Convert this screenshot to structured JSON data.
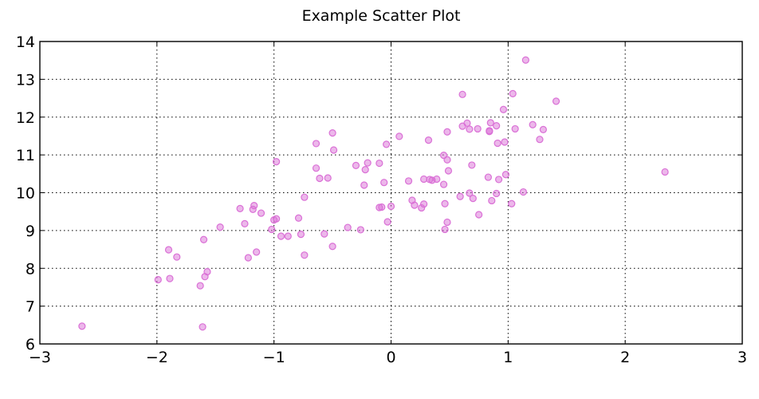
{
  "chart_data": {
    "type": "scatter",
    "title": "Example Scatter Plot",
    "xlabel": "",
    "ylabel": "",
    "xlim": [
      -3,
      3
    ],
    "ylim": [
      6,
      14
    ],
    "xticks": [
      -3,
      -2,
      -1,
      0,
      1,
      2,
      3
    ],
    "yticks": [
      6,
      7,
      8,
      9,
      10,
      11,
      12,
      13,
      14
    ],
    "xtick_labels": [
      "−3",
      "−2",
      "−1",
      "0",
      "1",
      "2",
      "3"
    ],
    "ytick_labels": [
      "6",
      "7",
      "8",
      "9",
      "10",
      "11",
      "12",
      "13",
      "14"
    ],
    "grid": true,
    "color": "#da70d6",
    "points": [
      {
        "x": -2.64,
        "y": 6.47
      },
      {
        "x": -1.99,
        "y": 7.7
      },
      {
        "x": -1.89,
        "y": 7.73
      },
      {
        "x": -1.9,
        "y": 8.49
      },
      {
        "x": -1.83,
        "y": 8.3
      },
      {
        "x": -1.63,
        "y": 7.54
      },
      {
        "x": -1.61,
        "y": 6.45
      },
      {
        "x": -1.59,
        "y": 7.78
      },
      {
        "x": -1.57,
        "y": 7.91
      },
      {
        "x": -1.6,
        "y": 8.76
      },
      {
        "x": -1.46,
        "y": 9.09
      },
      {
        "x": -1.29,
        "y": 9.58
      },
      {
        "x": -1.25,
        "y": 9.18
      },
      {
        "x": -1.22,
        "y": 8.28
      },
      {
        "x": -1.18,
        "y": 9.56
      },
      {
        "x": -1.17,
        "y": 9.66
      },
      {
        "x": -1.15,
        "y": 8.43
      },
      {
        "x": -1.11,
        "y": 9.46
      },
      {
        "x": -1.02,
        "y": 9.03
      },
      {
        "x": -1.0,
        "y": 9.28
      },
      {
        "x": -0.98,
        "y": 9.31
      },
      {
        "x": -0.98,
        "y": 10.82
      },
      {
        "x": -0.94,
        "y": 8.85
      },
      {
        "x": -0.88,
        "y": 8.85
      },
      {
        "x": -0.79,
        "y": 9.33
      },
      {
        "x": -0.77,
        "y": 8.9
      },
      {
        "x": -0.74,
        "y": 8.35
      },
      {
        "x": -0.74,
        "y": 9.88
      },
      {
        "x": -0.64,
        "y": 11.3
      },
      {
        "x": -0.64,
        "y": 10.65
      },
      {
        "x": -0.61,
        "y": 10.38
      },
      {
        "x": -0.57,
        "y": 8.91
      },
      {
        "x": -0.54,
        "y": 10.39
      },
      {
        "x": -0.5,
        "y": 11.58
      },
      {
        "x": -0.49,
        "y": 11.13
      },
      {
        "x": -0.5,
        "y": 8.58
      },
      {
        "x": -0.37,
        "y": 9.08
      },
      {
        "x": -0.3,
        "y": 10.72
      },
      {
        "x": -0.26,
        "y": 9.02
      },
      {
        "x": -0.23,
        "y": 10.2
      },
      {
        "x": -0.22,
        "y": 10.61
      },
      {
        "x": -0.2,
        "y": 10.79
      },
      {
        "x": -0.1,
        "y": 10.78
      },
      {
        "x": -0.1,
        "y": 9.61
      },
      {
        "x": -0.08,
        "y": 9.62
      },
      {
        "x": -0.06,
        "y": 10.27
      },
      {
        "x": -0.04,
        "y": 11.28
      },
      {
        "x": -0.03,
        "y": 9.23
      },
      {
        "x": 0.0,
        "y": 9.64
      },
      {
        "x": 0.07,
        "y": 11.49
      },
      {
        "x": 0.15,
        "y": 10.31
      },
      {
        "x": 0.18,
        "y": 9.8
      },
      {
        "x": 0.2,
        "y": 9.67
      },
      {
        "x": 0.26,
        "y": 9.6
      },
      {
        "x": 0.28,
        "y": 9.7
      },
      {
        "x": 0.28,
        "y": 10.36
      },
      {
        "x": 0.32,
        "y": 11.39
      },
      {
        "x": 0.33,
        "y": 10.35
      },
      {
        "x": 0.35,
        "y": 10.33
      },
      {
        "x": 0.39,
        "y": 10.36
      },
      {
        "x": 0.45,
        "y": 10.99
      },
      {
        "x": 0.45,
        "y": 10.22
      },
      {
        "x": 0.46,
        "y": 9.71
      },
      {
        "x": 0.46,
        "y": 9.03
      },
      {
        "x": 0.48,
        "y": 10.87
      },
      {
        "x": 0.48,
        "y": 11.61
      },
      {
        "x": 0.48,
        "y": 9.22
      },
      {
        "x": 0.49,
        "y": 10.58
      },
      {
        "x": 0.59,
        "y": 9.9
      },
      {
        "x": 0.61,
        "y": 11.76
      },
      {
        "x": 0.61,
        "y": 12.6
      },
      {
        "x": 0.65,
        "y": 11.84
      },
      {
        "x": 0.67,
        "y": 11.68
      },
      {
        "x": 0.67,
        "y": 9.99
      },
      {
        "x": 0.69,
        "y": 10.73
      },
      {
        "x": 0.7,
        "y": 9.85
      },
      {
        "x": 0.74,
        "y": 11.69
      },
      {
        "x": 0.75,
        "y": 9.42
      },
      {
        "x": 0.83,
        "y": 10.41
      },
      {
        "x": 0.84,
        "y": 11.62
      },
      {
        "x": 0.84,
        "y": 11.64
      },
      {
        "x": 0.85,
        "y": 11.85
      },
      {
        "x": 0.86,
        "y": 9.79
      },
      {
        "x": 0.9,
        "y": 11.77
      },
      {
        "x": 0.9,
        "y": 9.98
      },
      {
        "x": 0.91,
        "y": 11.31
      },
      {
        "x": 0.92,
        "y": 10.35
      },
      {
        "x": 0.96,
        "y": 12.2
      },
      {
        "x": 0.97,
        "y": 11.34
      },
      {
        "x": 0.98,
        "y": 10.48
      },
      {
        "x": 1.03,
        "y": 9.71
      },
      {
        "x": 1.04,
        "y": 12.62
      },
      {
        "x": 1.06,
        "y": 11.69
      },
      {
        "x": 1.13,
        "y": 10.02
      },
      {
        "x": 1.15,
        "y": 13.51
      },
      {
        "x": 1.21,
        "y": 11.8
      },
      {
        "x": 1.27,
        "y": 11.41
      },
      {
        "x": 1.3,
        "y": 11.67
      },
      {
        "x": 1.41,
        "y": 12.42
      },
      {
        "x": 2.34,
        "y": 10.55
      }
    ]
  }
}
